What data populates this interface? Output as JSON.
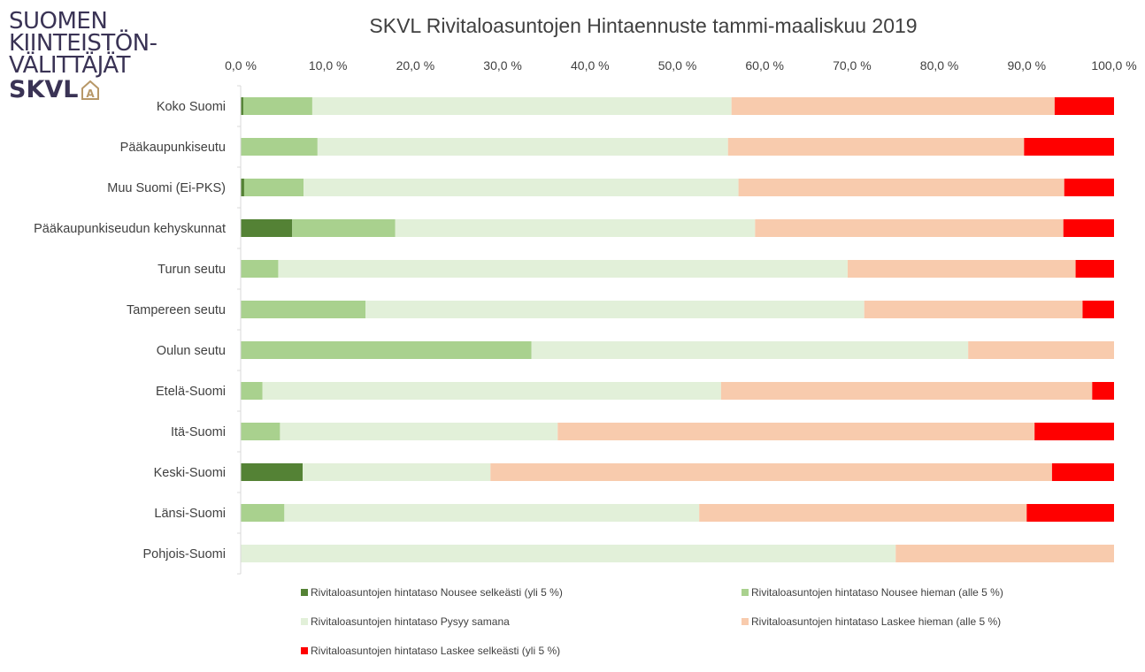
{
  "logo": {
    "lines": [
      "SUOMEN",
      "KIINTEISTÖN-",
      "VÄLITTÄJÄT"
    ],
    "abbr": "SKVL",
    "icon": "house-a-icon"
  },
  "chart_data": {
    "type": "bar",
    "orientation": "horizontal",
    "stacked": "percent",
    "title": "SKVL Rivitaloasuntojen Hintaennuste tammi-maaliskuu 2019",
    "xlabel": "",
    "ylabel": "",
    "xlim": [
      0,
      100
    ],
    "x_ticks": [
      "0,0 %",
      "10,0 %",
      "20,0 %",
      "30,0 %",
      "40,0 %",
      "50,0 %",
      "60,0 %",
      "70,0 %",
      "80,0 %",
      "90,0 %",
      "100,0 %"
    ],
    "grid": false,
    "legend_position": "bottom",
    "categories": [
      "Koko Suomi",
      "Pääkaupunkiseutu",
      "Muu Suomi (Ei-PKS)",
      "Pääkaupunkiseudun kehyskunnat",
      "Turun seutu",
      "Tampereen seutu",
      "Oulun seutu",
      "Etelä-Suomi",
      "Itä-Suomi",
      "Keski-Suomi",
      "Länsi-Suomi",
      "Pohjois-Suomi"
    ],
    "series": [
      {
        "name": "Rivitaloasuntojen hintataso Nousee selkeästi (yli 5 %)",
        "color": "#548235",
        "values": [
          0.3,
          0.0,
          0.4,
          5.9,
          0.0,
          0.0,
          0.0,
          0.0,
          0.0,
          7.1,
          0.0,
          0.0
        ]
      },
      {
        "name": "Rivitaloasuntojen hintataso Nousee hieman (alle 5 %)",
        "color": "#a9d18e",
        "values": [
          7.9,
          8.8,
          6.8,
          11.8,
          4.3,
          14.3,
          33.3,
          2.5,
          4.5,
          0.0,
          5.0,
          0.0
        ]
      },
      {
        "name": "Rivitaloasuntojen hintataso Pysyy samana",
        "color": "#e2f0d9",
        "values": [
          48.0,
          47.0,
          49.8,
          41.2,
          65.2,
          57.1,
          50.0,
          52.5,
          31.8,
          21.5,
          47.5,
          75.0
        ]
      },
      {
        "name": "Rivitaloasuntojen hintataso Laskee hieman (alle 5 %)",
        "color": "#f8cbad",
        "values": [
          37.0,
          33.9,
          37.3,
          35.3,
          26.1,
          25.0,
          16.7,
          42.5,
          54.6,
          64.3,
          37.5,
          25.0
        ]
      },
      {
        "name": "Rivitaloasuntojen hintataso Laskee selkeästi (yli 5 %)",
        "color": "#ff0000",
        "values": [
          6.8,
          10.3,
          5.7,
          5.8,
          4.4,
          3.6,
          0.0,
          2.5,
          9.1,
          7.1,
          10.0,
          0.0
        ]
      }
    ]
  }
}
